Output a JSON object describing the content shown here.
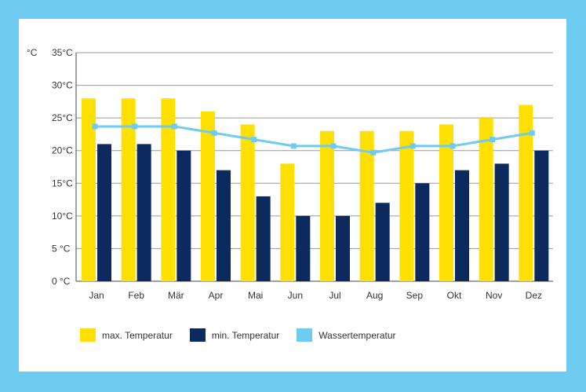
{
  "chart_data": {
    "type": "bar",
    "unit_label": "°C",
    "categories": [
      "Jan",
      "Feb",
      "Mär",
      "Apr",
      "Mai",
      "Jun",
      "Jul",
      "Aug",
      "Sep",
      "Okt",
      "Nov",
      "Dez"
    ],
    "y_ticks": [
      "0 °C",
      "5 °C",
      "10°C",
      "15°C",
      "20°C",
      "25°C",
      "30°C",
      "35°C"
    ],
    "ylim": [
      0,
      35
    ],
    "grid": true,
    "legend_position": "bottom-left",
    "series": [
      {
        "name": "max. Temperatur",
        "type": "bar",
        "color": "#ffe000",
        "values": [
          28,
          28,
          28,
          26,
          24,
          18,
          23,
          23,
          23,
          24,
          25,
          27
        ]
      },
      {
        "name": "min. Temperatur",
        "type": "bar",
        "color": "#0c2a5e",
        "values": [
          21,
          21,
          20,
          17,
          13,
          10,
          10,
          12,
          15,
          17,
          18,
          20
        ]
      },
      {
        "name": "Wassertemperatur",
        "type": "line",
        "color": "#6ecbf2",
        "values": [
          23.7,
          23.7,
          23.7,
          22.7,
          21.7,
          20.7,
          20.7,
          19.7,
          20.7,
          20.7,
          21.7,
          22.7
        ]
      }
    ]
  }
}
